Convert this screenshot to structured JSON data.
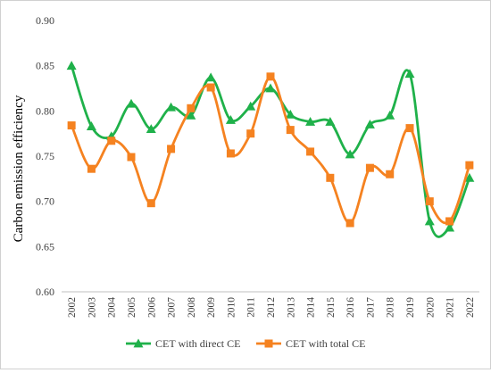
{
  "chart_data": {
    "type": "line",
    "title": "",
    "xlabel": "",
    "ylabel": "Carbon emission efficiency",
    "ylim": [
      0.6,
      0.9
    ],
    "yticks": [
      0.6,
      0.65,
      0.7,
      0.75,
      0.8,
      0.85,
      0.9
    ],
    "ytick_labels": [
      "0.60",
      "0.65",
      "0.70",
      "0.75",
      "0.80",
      "0.85",
      "0.90"
    ],
    "categories": [
      "2002",
      "2003",
      "2004",
      "2005",
      "2006",
      "2007",
      "2008",
      "2009",
      "2010",
      "2011",
      "2012",
      "2013",
      "2014",
      "2015",
      "2016",
      "2017",
      "2018",
      "2019",
      "2020",
      "2021",
      "2022"
    ],
    "grid": false,
    "legend_position": "bottom",
    "smooth": true,
    "series": [
      {
        "name": "CET with direct CE",
        "color": "#1fb14a",
        "marker": "triangle",
        "values": [
          0.85,
          0.783,
          0.772,
          0.808,
          0.78,
          0.804,
          0.795,
          0.837,
          0.79,
          0.805,
          0.825,
          0.796,
          0.788,
          0.788,
          0.752,
          0.785,
          0.795,
          0.841,
          0.678,
          0.671,
          0.726
        ]
      },
      {
        "name": "CET with total CE",
        "color": "#f58220",
        "marker": "square",
        "values": [
          0.784,
          0.736,
          0.767,
          0.749,
          0.698,
          0.758,
          0.803,
          0.826,
          0.753,
          0.775,
          0.838,
          0.779,
          0.755,
          0.726,
          0.676,
          0.737,
          0.73,
          0.781,
          0.7,
          0.678,
          0.74
        ]
      }
    ]
  }
}
